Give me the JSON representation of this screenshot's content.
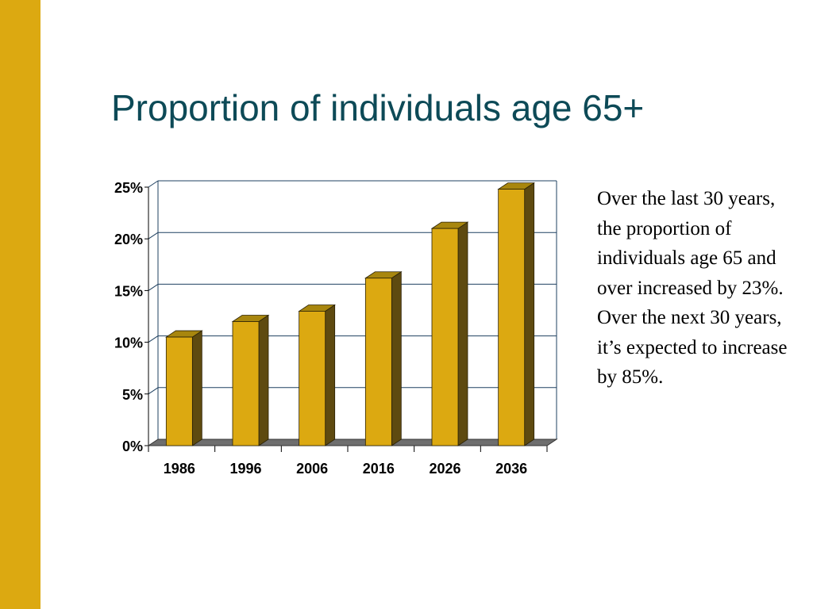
{
  "slide": {
    "title": "Proportion of individuals age 65+",
    "note": "Over the last 30 years, the proportion of individuals age 65 and over increased by 23%.  Over the next 30 years, it’s expected to increase by 85%."
  },
  "colors": {
    "side_bar": "#DCA911",
    "title": "#0D4A57",
    "bar_front": "#DCA911",
    "bar_side": "#5E4A10",
    "bar_top": "#A8860E",
    "floor": "#6E6E6E",
    "gridline": "#1F4060"
  },
  "chart_data": {
    "type": "bar",
    "title": "",
    "xlabel": "",
    "ylabel": "",
    "categories": [
      "1986",
      "1996",
      "2006",
      "2016",
      "2026",
      "2036"
    ],
    "values": [
      10.5,
      12,
      13,
      16.2,
      21,
      24.8
    ],
    "ylim": [
      0,
      25
    ],
    "yticks": [
      0,
      5,
      10,
      15,
      20,
      25
    ],
    "ytick_labels": [
      "0%",
      "5%",
      "10%",
      "15%",
      "20%",
      "25%"
    ],
    "unit": "%",
    "style": "3d-column",
    "grid": true,
    "legend": "none"
  }
}
